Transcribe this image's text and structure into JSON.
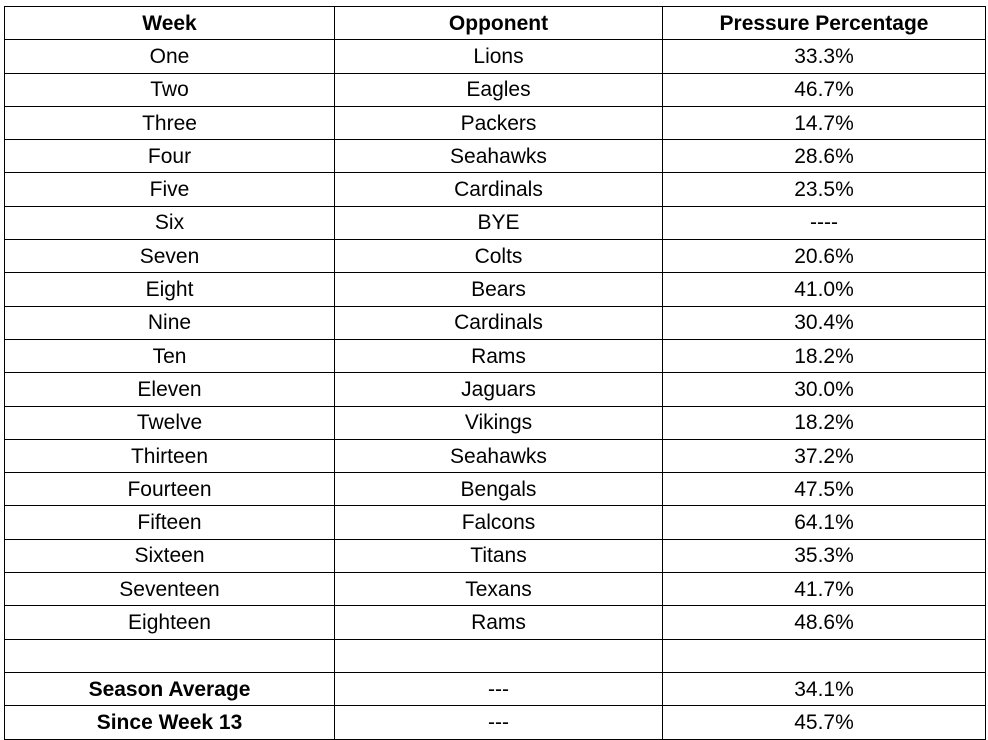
{
  "table": {
    "headers": [
      "Week",
      "Opponent",
      "Pressure Percentage"
    ],
    "rows": [
      [
        "One",
        "Lions",
        "33.3%"
      ],
      [
        "Two",
        "Eagles",
        "46.7%"
      ],
      [
        "Three",
        "Packers",
        "14.7%"
      ],
      [
        "Four",
        "Seahawks",
        "28.6%"
      ],
      [
        "Five",
        "Cardinals",
        "23.5%"
      ],
      [
        "Six",
        "BYE",
        "----"
      ],
      [
        "Seven",
        "Colts",
        "20.6%"
      ],
      [
        "Eight",
        "Bears",
        "41.0%"
      ],
      [
        "Nine",
        "Cardinals",
        "30.4%"
      ],
      [
        "Ten",
        "Rams",
        "18.2%"
      ],
      [
        "Eleven",
        "Jaguars",
        "30.0%"
      ],
      [
        "Twelve",
        "Vikings",
        "18.2%"
      ],
      [
        "Thirteen",
        "Seahawks",
        "37.2%"
      ],
      [
        "Fourteen",
        "Bengals",
        "47.5%"
      ],
      [
        "Fifteen",
        "Falcons",
        "64.1%"
      ],
      [
        "Sixteen",
        "Titans",
        "35.3%"
      ],
      [
        "Seventeen",
        "Texans",
        "41.7%"
      ],
      [
        "Eighteen",
        "Rams",
        "48.6%"
      ],
      [
        "",
        "",
        ""
      ]
    ],
    "summary": [
      [
        "Season Average",
        "---",
        "34.1%"
      ],
      [
        "Since Week 13",
        "---",
        "45.7%"
      ]
    ]
  }
}
